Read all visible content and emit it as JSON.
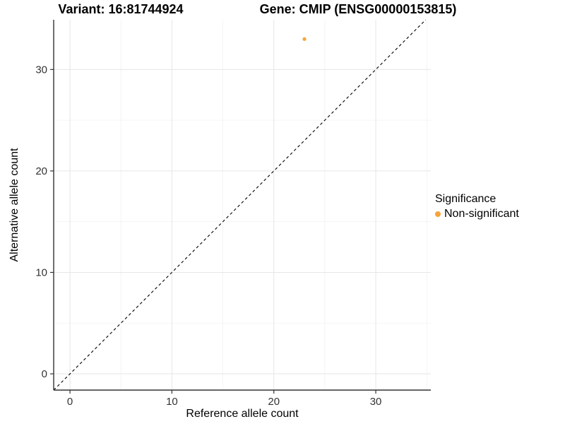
{
  "titles": {
    "variant": "Variant: 16:81744924",
    "gene": "Gene: CMIP (ENSG00000153815)"
  },
  "axes": {
    "x_label": "Reference allele count",
    "y_label": "Alternative allele count"
  },
  "legend": {
    "title": "Significance",
    "items": [
      {
        "label": "Non-significant",
        "color": "#F9A33B",
        "marker": "circle"
      }
    ],
    "position": "right"
  },
  "colors": {
    "point_orange": "#F9A33B",
    "axis_line": "#333333",
    "grid_major": "#E6E6E6",
    "grid_minor": "#F2F2F2",
    "tick_text": "#333333",
    "identity_line": "#000000",
    "background": "#FFFFFF"
  },
  "chart_data": {
    "type": "scatter",
    "title": "Variant: 16:81744924   Gene: CMIP (ENSG00000153815)",
    "xlabel": "Reference allele count",
    "ylabel": "Alternative allele count",
    "xlim": [
      -1.6,
      35.4
    ],
    "ylim": [
      -1.6,
      34.9
    ],
    "x_ticks": [
      0,
      10,
      20,
      30
    ],
    "y_ticks": [
      0,
      10,
      20,
      30
    ],
    "x_minor_ticks": [
      5,
      15,
      25,
      35
    ],
    "y_minor_ticks": [
      5,
      15,
      25
    ],
    "grid": true,
    "legend_position": "right",
    "series": [
      {
        "name": "Non-significant",
        "color": "#F9A33B",
        "points": [
          {
            "x": 23,
            "y": 33
          }
        ]
      }
    ],
    "reference_line": {
      "equation": "y = x",
      "style": "dashed",
      "color": "#000000"
    }
  }
}
